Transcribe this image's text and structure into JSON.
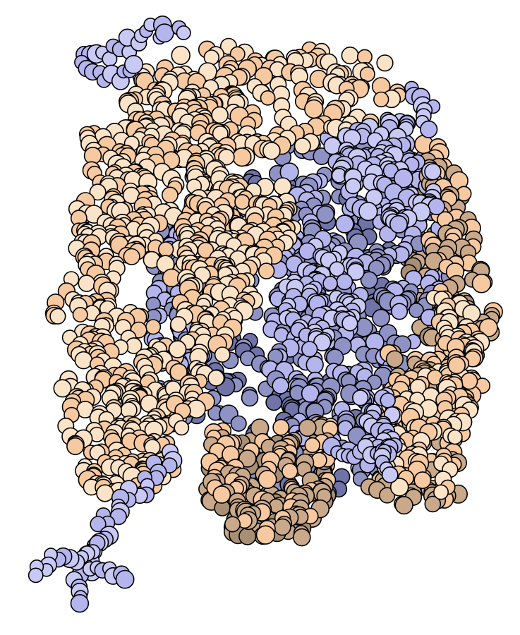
{
  "image": {
    "subject": "space-filling-molecular-illustration",
    "background": "#ffffff"
  },
  "palette": {
    "dna_light": "#fbe3c8",
    "dna_mid": "#f6c9a0",
    "dna_shadow": "#c9a98a",
    "dna_deep": "#a88f74",
    "protein_light": "#c9c9f5",
    "protein_mid": "#b5b5ee",
    "protein_shadow": "#8f92c4",
    "protein_deep": "#6f73a8",
    "outline": "#000000"
  },
  "regions": [
    {
      "name": "dna-strand-left",
      "color_key": "dna"
    },
    {
      "name": "dna-strand-right",
      "color_key": "dna"
    },
    {
      "name": "dna-strand-top",
      "color_key": "dna"
    },
    {
      "name": "dna-strand-bottom",
      "color_key": "dna"
    },
    {
      "name": "protein-core",
      "color_key": "protein"
    },
    {
      "name": "protein-tail-bottom-left",
      "color_key": "protein"
    },
    {
      "name": "protein-tail-top-left",
      "color_key": "protein"
    }
  ]
}
